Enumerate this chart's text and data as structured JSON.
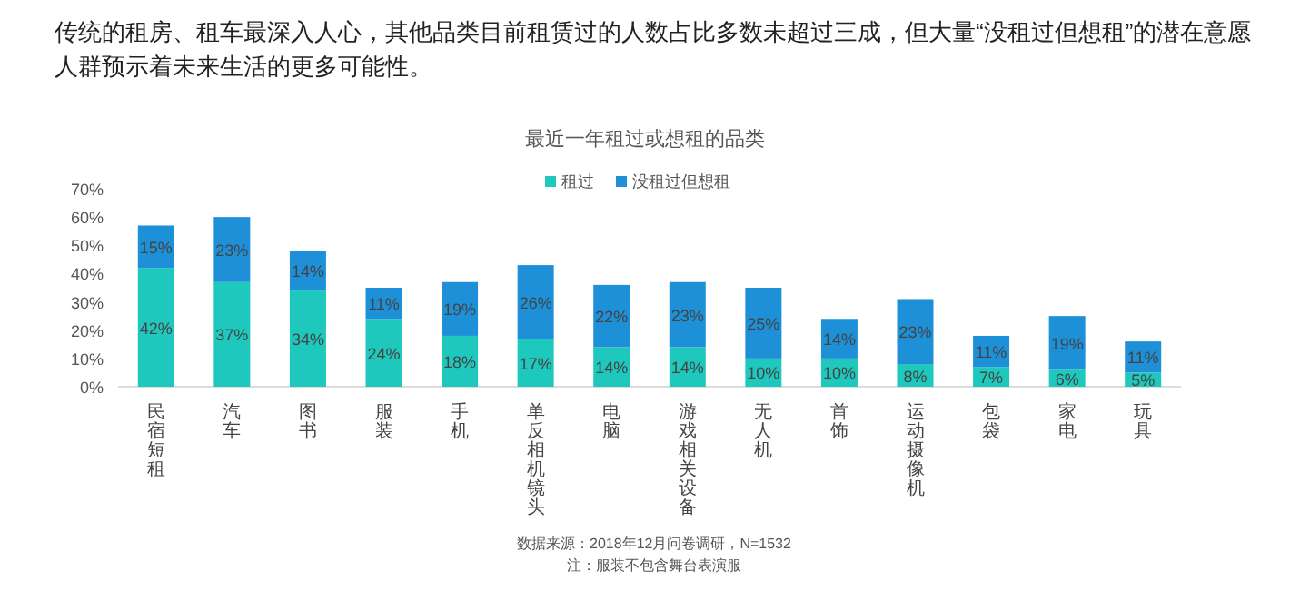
{
  "chart_data": {
    "type": "bar",
    "stacked": true,
    "title": "传统的租房、租车最深入人心，其他品类目前租赁过的人数占比多数未超过三成，但大量“没租过但想租”的潜在意愿人群预示着未来生活的更多可能性。",
    "subtitle": "最近一年租过或想租的品类",
    "categories": [
      "民宿短租",
      "汽车",
      "图书",
      "服装",
      "手机",
      "单反相机镜头",
      "电脑",
      "游戏相关设备",
      "无人机",
      "首饰",
      "运动摄像机",
      "包袋",
      "家电",
      "玩具"
    ],
    "series": [
      {
        "name": "租过",
        "color": "#1fc8bd",
        "values": [
          42,
          37,
          34,
          24,
          18,
          17,
          14,
          14,
          10,
          10,
          8,
          7,
          6,
          5
        ],
        "value_labels": [
          "42%",
          "37%",
          "34%",
          "24%",
          "18%",
          "17%",
          "14%",
          "14%",
          "10%",
          "10%",
          "8%",
          "7%",
          "6%",
          "5%"
        ]
      },
      {
        "name": "没租过但想租",
        "color": "#1e90d8",
        "values": [
          15,
          23,
          14,
          11,
          19,
          26,
          22,
          23,
          25,
          14,
          23,
          11,
          19,
          11
        ],
        "value_labels": [
          "15%",
          "23%",
          "14%",
          "11%",
          "19%",
          "26%",
          "22%",
          "23%",
          "25%",
          "14%",
          "23%",
          "11%",
          "19%",
          "11%"
        ]
      }
    ],
    "ylim": [
      0,
      70
    ],
    "yticks": [
      {
        "value": 0,
        "label": "0%"
      },
      {
        "value": 10,
        "label": "10%"
      },
      {
        "value": 20,
        "label": "20%"
      },
      {
        "value": 30,
        "label": "30%"
      },
      {
        "value": 40,
        "label": "40%"
      },
      {
        "value": 50,
        "label": "50%"
      },
      {
        "value": 60,
        "label": "60%"
      },
      {
        "value": 70,
        "label": "70%"
      }
    ],
    "grid": false,
    "legend": "top",
    "annotations": [
      "数据来源：2018年12月问卷调研，N=1532",
      "注：服装不包含舞台表演服"
    ]
  }
}
